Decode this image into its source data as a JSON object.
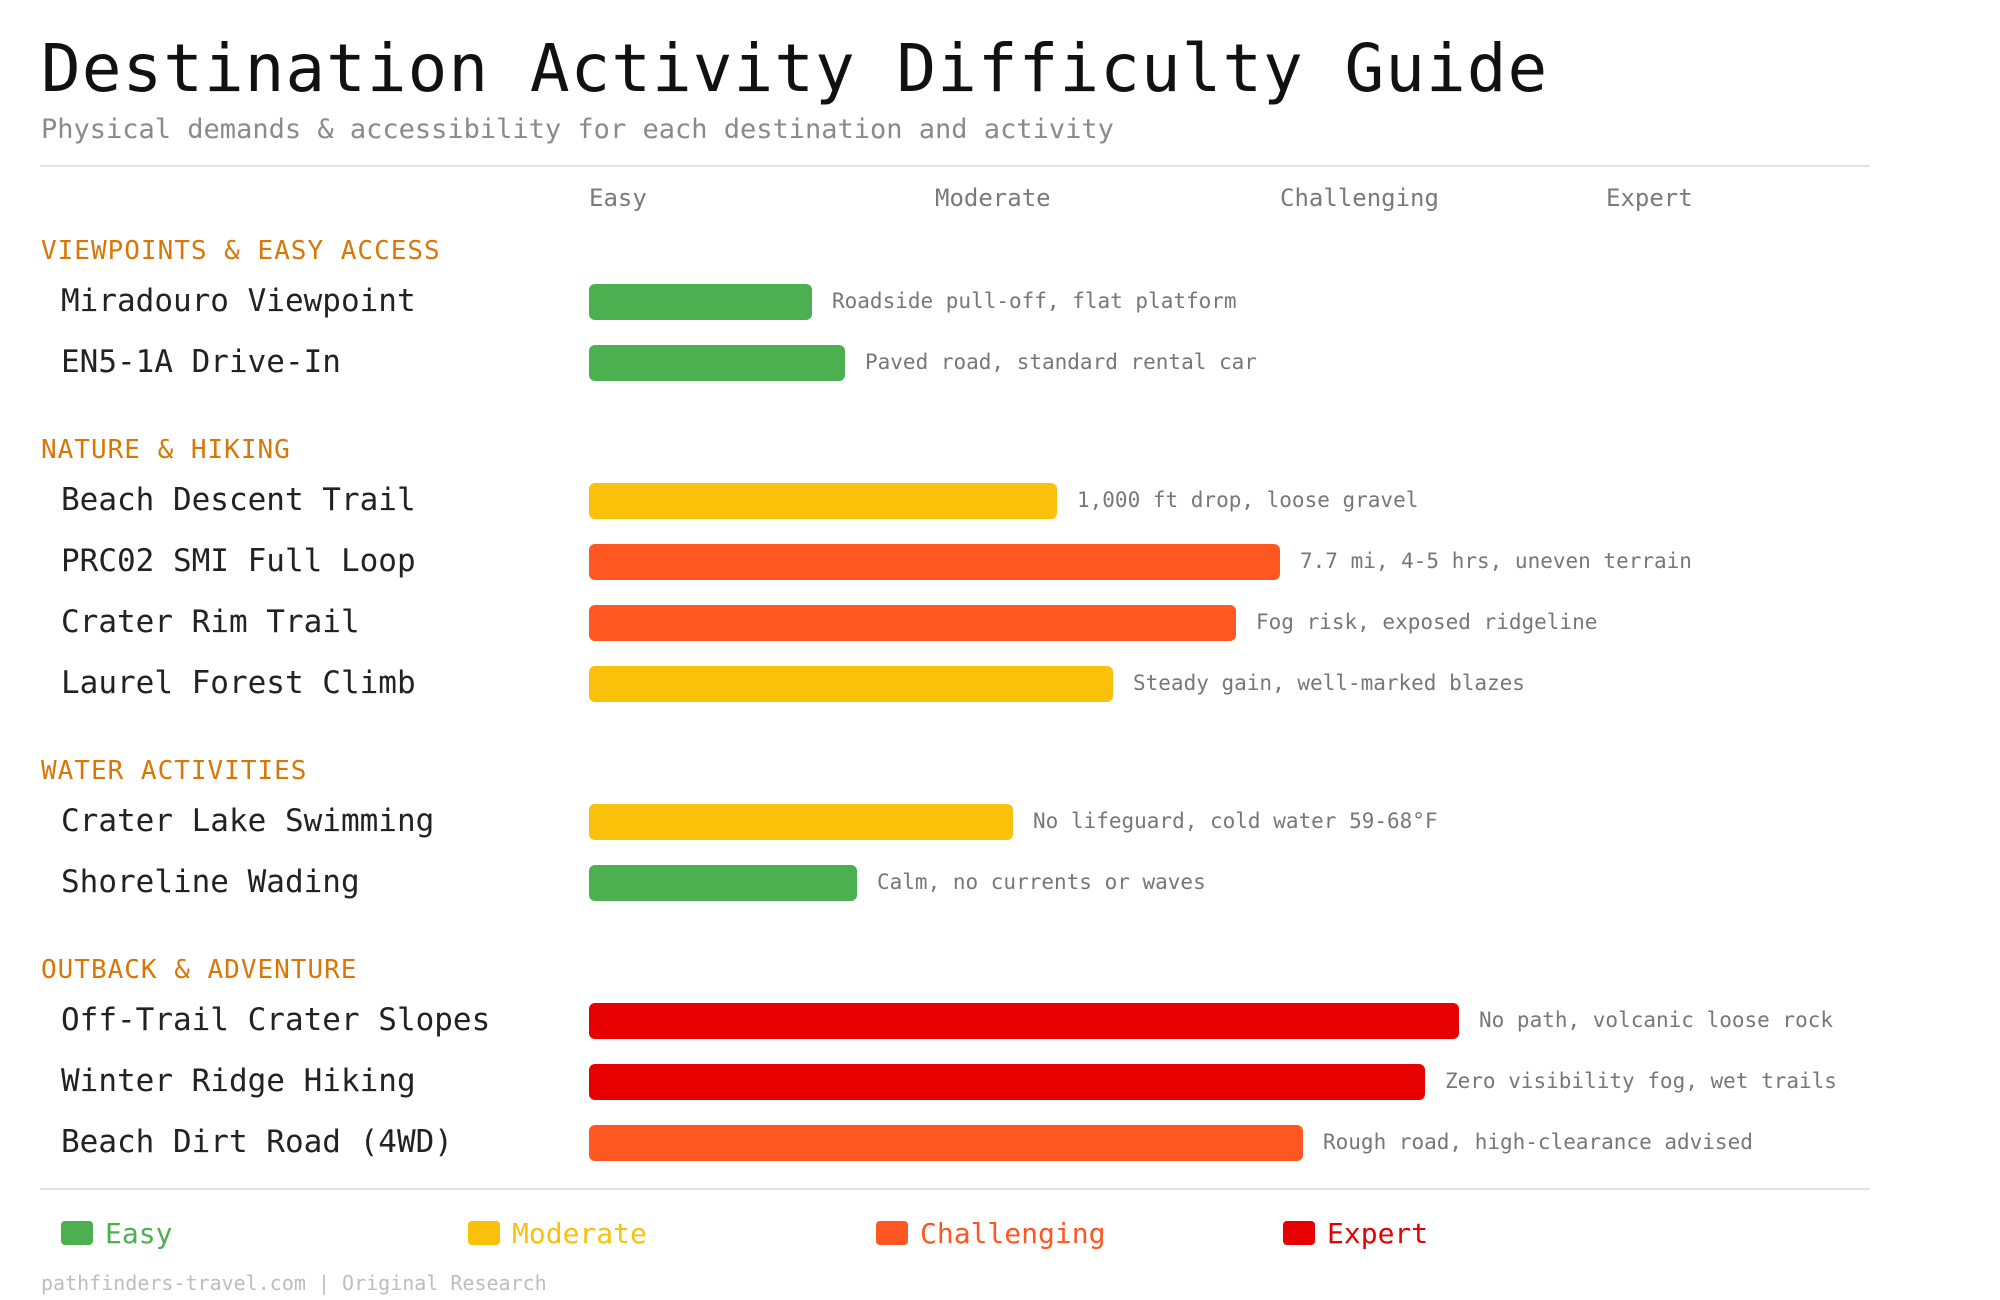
{
  "title": "Destination Activity Difficulty Guide",
  "subtitle": "Physical demands & accessibility for each destination and activity",
  "scale_labels": [
    "Easy",
    "Moderate",
    "Challenging",
    "Expert"
  ],
  "colors": {
    "Easy": "#4caf50",
    "Moderate": "#fbc10a",
    "Challenging": "#ff5722",
    "Expert": "#e60000",
    "category": "#d97706"
  },
  "chart_data": {
    "type": "bar",
    "orientation": "horizontal",
    "x_scale": "difficulty (Easy to Expert)",
    "xlim": [
      0,
      100
    ],
    "groups": [
      {
        "name": "VIEWPOINTS & EASY ACCESS",
        "items": [
          {
            "label": "Miradouro Viewpoint",
            "value": 20,
            "level": "Easy",
            "note": "Roadside pull-off, flat platform"
          },
          {
            "label": "EN5-1A Drive-In",
            "value": 23,
            "level": "Easy",
            "note": "Paved road, standard rental car"
          }
        ]
      },
      {
        "name": "NATURE & HIKING",
        "items": [
          {
            "label": "Beach Descent Trail",
            "value": 42,
            "level": "Moderate",
            "note": "1,000 ft drop, loose gravel"
          },
          {
            "label": "PRC02 SMI Full Loop",
            "value": 62,
            "level": "Challenging",
            "note": "7.7 mi, 4-5 hrs, uneven terrain"
          },
          {
            "label": "Crater Rim Trail",
            "value": 58,
            "level": "Challenging",
            "note": "Fog risk, exposed ridgeline"
          },
          {
            "label": "Laurel Forest Climb",
            "value": 47,
            "level": "Moderate",
            "note": "Steady gain, well-marked blazes"
          }
        ]
      },
      {
        "name": "WATER ACTIVITIES",
        "items": [
          {
            "label": "Crater Lake Swimming",
            "value": 38,
            "level": "Moderate",
            "note": "No lifeguard, cold water 59-68°F"
          },
          {
            "label": "Shoreline Wading",
            "value": 24,
            "level": "Easy",
            "note": "Calm, no currents or waves"
          }
        ]
      },
      {
        "name": "OUTBACK & ADVENTURE",
        "items": [
          {
            "label": "Off-Trail Crater Slopes",
            "value": 78,
            "level": "Expert",
            "note": "No path, volcanic loose rock"
          },
          {
            "label": "Winter Ridge Hiking",
            "value": 75,
            "level": "Expert",
            "note": "Zero visibility fog, wet trails"
          },
          {
            "label": "Beach Dirt Road (4WD)",
            "value": 64,
            "level": "Challenging",
            "note": "Rough road, high-clearance advised"
          }
        ]
      }
    ]
  },
  "legend": [
    {
      "label": "Easy",
      "level": "Easy"
    },
    {
      "label": "Moderate",
      "level": "Moderate"
    },
    {
      "label": "Challenging",
      "level": "Challenging"
    },
    {
      "label": "Expert",
      "level": "Expert"
    }
  ],
  "footer": "pathfinders-travel.com | Original Research"
}
